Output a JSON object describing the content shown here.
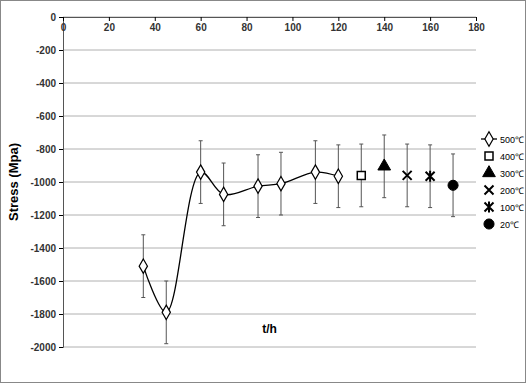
{
  "chart_data": {
    "type": "scatter",
    "x_label": "t/h",
    "y_label": "Stress   (Mpa)",
    "xlim": [
      0,
      180
    ],
    "xticks": [
      0,
      20,
      40,
      60,
      80,
      100,
      120,
      140,
      160,
      180
    ],
    "ylim": [
      -2000,
      0
    ],
    "yticks": [
      -2000,
      -1800,
      -1600,
      -1400,
      -1200,
      -1000,
      -800,
      -600,
      -400,
      -200,
      0
    ],
    "grid": "y",
    "legend": "right",
    "series": [
      {
        "name": "500℃",
        "color": "#000000",
        "marker": "diamond-open",
        "line_style": "smooth",
        "x": [
          35,
          45,
          60,
          70,
          85,
          95,
          110,
          120
        ],
        "values": [
          -1510,
          -1790,
          -940,
          -1075,
          -1025,
          -1010,
          -940,
          -965
        ],
        "errors": [
          190,
          190,
          190,
          190,
          190,
          190,
          190,
          190
        ]
      },
      {
        "name": "400℃",
        "color": "#000000",
        "marker": "square-open",
        "line_style": "none",
        "x": [
          130
        ],
        "values": [
          -960
        ],
        "errors": [
          190
        ]
      },
      {
        "name": "300℃",
        "color": "#000000",
        "marker": "triangle",
        "line_style": "none",
        "x": [
          140
        ],
        "values": [
          -905
        ],
        "errors": [
          190
        ]
      },
      {
        "name": "200℃",
        "color": "#000000",
        "marker": "x",
        "line_style": "none",
        "x": [
          150
        ],
        "values": [
          -960
        ],
        "errors": [
          190
        ]
      },
      {
        "name": "100℃",
        "color": "#000000",
        "marker": "asterisk",
        "line_style": "none",
        "x": [
          160
        ],
        "values": [
          -965
        ],
        "errors": [
          190
        ]
      },
      {
        "name": "20℃",
        "color": "#000000",
        "marker": "circle",
        "line_style": "none",
        "x": [
          170
        ],
        "values": [
          -1020
        ],
        "errors": [
          190
        ]
      }
    ]
  }
}
